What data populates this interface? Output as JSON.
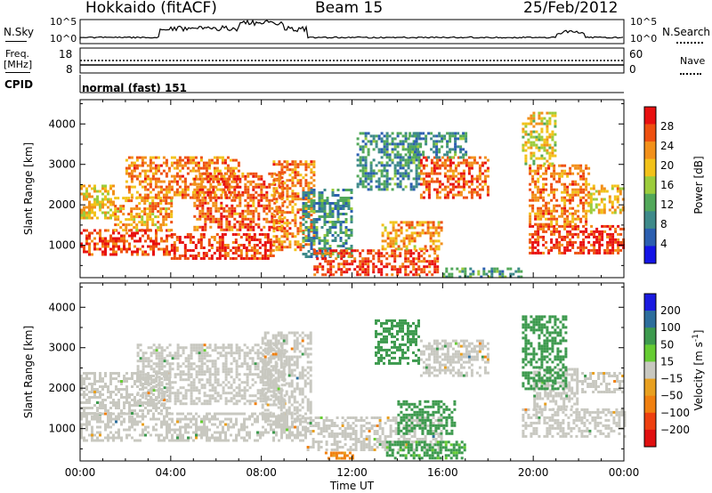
{
  "header": {
    "station": "Hokkaido (fitACF)",
    "beam": "Beam 15",
    "date": "25/Feb/2012"
  },
  "summary_panel": {
    "nsky_label": "N.Sky",
    "nsky_ticks": [
      "10^5",
      "10^0"
    ],
    "nsearch_label": "N.Search",
    "nsearch_ticks": [
      "10^5",
      "10^0"
    ],
    "freq_label_1": "Freq.",
    "freq_label_2": "[MHz]",
    "freq_ticks": [
      "18",
      "8"
    ],
    "nave_label": "Nave",
    "nave_ticks": [
      "60",
      "0"
    ],
    "cpid_label": "CPID",
    "cpid_value": "normal (fast) 151"
  },
  "colors": {
    "power_scale": [
      "#1414e6",
      "#2c5fb0",
      "#3e8a8a",
      "#52a85a",
      "#9ccc3c",
      "#f2c21a",
      "#f2901a",
      "#ee5010",
      "#e81010"
    ],
    "velocity_scale": [
      "#1a1ae0",
      "#2d6e9c",
      "#3d9a4e",
      "#66cc33",
      "#c8c8c0",
      "#e8a020",
      "#f08010",
      "#ee4010",
      "#e01010"
    ]
  },
  "chart_data": [
    {
      "type": "heatmap",
      "name": "power",
      "ylabel": "Slant Range [km]",
      "xlabel": "",
      "x_ticks": [
        "00:00",
        "04:00",
        "08:00",
        "12:00",
        "16:00",
        "20:00",
        "00:00"
      ],
      "x_range_hours": [
        0,
        24
      ],
      "y_ticks": [
        1000,
        2000,
        3000,
        4000
      ],
      "ylim": [
        200,
        4600
      ],
      "colorbar": {
        "label": "Power [dB]",
        "ticks": [
          4,
          8,
          12,
          16,
          20,
          24,
          28
        ],
        "range": [
          0,
          32
        ]
      },
      "regions": [
        {
          "t": [
            0.0,
            4.0
          ],
          "r": [
            800,
            1400
          ],
          "level": 28
        },
        {
          "t": [
            0.0,
            1.5
          ],
          "r": [
            1700,
            2500
          ],
          "level": 20
        },
        {
          "t": [
            1.5,
            4.0
          ],
          "r": [
            1400,
            2200
          ],
          "level": 22
        },
        {
          "t": [
            2.0,
            7.0
          ],
          "r": [
            2200,
            3200
          ],
          "level": 24
        },
        {
          "t": [
            4.0,
            8.5
          ],
          "r": [
            700,
            1300
          ],
          "level": 28
        },
        {
          "t": [
            5.0,
            9.0
          ],
          "r": [
            1400,
            2800
          ],
          "level": 26
        },
        {
          "t": [
            8.5,
            10.3
          ],
          "r": [
            900,
            3100
          ],
          "level": 24
        },
        {
          "t": [
            9.8,
            12.0
          ],
          "r": [
            700,
            2400
          ],
          "level": 10
        },
        {
          "t": [
            10.3,
            15.8
          ],
          "r": [
            250,
            900
          ],
          "level": 28
        },
        {
          "t": [
            13.3,
            16.0
          ],
          "r": [
            900,
            1600
          ],
          "level": 22
        },
        {
          "t": [
            12.2,
            15.0
          ],
          "r": [
            2400,
            3800
          ],
          "level": 10
        },
        {
          "t": [
            15.0,
            18.0
          ],
          "r": [
            2200,
            3200
          ],
          "level": 26
        },
        {
          "t": [
            14.5,
            17.0
          ],
          "r": [
            3200,
            3800
          ],
          "level": 10
        },
        {
          "t": [
            16.0,
            19.5
          ],
          "r": [
            250,
            450
          ],
          "level": 10
        },
        {
          "t": [
            19.8,
            24.0
          ],
          "r": [
            800,
            1500
          ],
          "level": 28
        },
        {
          "t": [
            19.8,
            22.5
          ],
          "r": [
            1500,
            3000
          ],
          "level": 24
        },
        {
          "t": [
            19.5,
            21.0
          ],
          "r": [
            3000,
            4300
          ],
          "level": 18
        },
        {
          "t": [
            22.5,
            24.0
          ],
          "r": [
            1800,
            2500
          ],
          "level": 20
        }
      ]
    },
    {
      "type": "heatmap",
      "name": "velocity",
      "ylabel": "Slant Range [km]",
      "xlabel": "Time UT",
      "x_ticks": [
        "00:00",
        "04:00",
        "08:00",
        "12:00",
        "16:00",
        "20:00",
        "00:00"
      ],
      "x_range_hours": [
        0,
        24
      ],
      "y_ticks": [
        1000,
        2000,
        3000,
        4000
      ],
      "ylim": [
        200,
        4600
      ],
      "colorbar": {
        "label": "Velocity [m s^-1]",
        "ticks": [
          200,
          100,
          50,
          15,
          -15,
          -50,
          -100,
          -200
        ],
        "range": [
          -250,
          250
        ]
      },
      "regions": [
        {
          "t": [
            0.0,
            10.0
          ],
          "r": [
            700,
            1400
          ],
          "level": 0
        },
        {
          "t": [
            0.0,
            4.0
          ],
          "r": [
            1400,
            2400
          ],
          "level": 0
        },
        {
          "t": [
            2.5,
            9.0
          ],
          "r": [
            1600,
            3100
          ],
          "level": 0
        },
        {
          "t": [
            8.0,
            10.2
          ],
          "r": [
            1200,
            3400
          ],
          "level": 0
        },
        {
          "t": [
            10.0,
            16.0
          ],
          "r": [
            500,
            1300
          ],
          "level": 0
        },
        {
          "t": [
            13.5,
            17.0
          ],
          "r": [
            250,
            700
          ],
          "level": 40
        },
        {
          "t": [
            14.0,
            16.5
          ],
          "r": [
            900,
            1700
          ],
          "level": 60
        },
        {
          "t": [
            15.0,
            18.0
          ],
          "r": [
            2300,
            3200
          ],
          "level": 0
        },
        {
          "t": [
            13.0,
            15.0
          ],
          "r": [
            2600,
            3700
          ],
          "level": 50
        },
        {
          "t": [
            10.8,
            12.0
          ],
          "r": [
            280,
            430
          ],
          "level": -60
        },
        {
          "t": [
            19.5,
            24.0
          ],
          "r": [
            800,
            1500
          ],
          "level": 0
        },
        {
          "t": [
            20.0,
            22.0
          ],
          "r": [
            1500,
            2500
          ],
          "level": 0
        },
        {
          "t": [
            19.5,
            21.5
          ],
          "r": [
            2000,
            3800
          ],
          "level": 60
        },
        {
          "t": [
            22.0,
            24.0
          ],
          "r": [
            1900,
            2400
          ],
          "level": 0
        }
      ]
    }
  ]
}
